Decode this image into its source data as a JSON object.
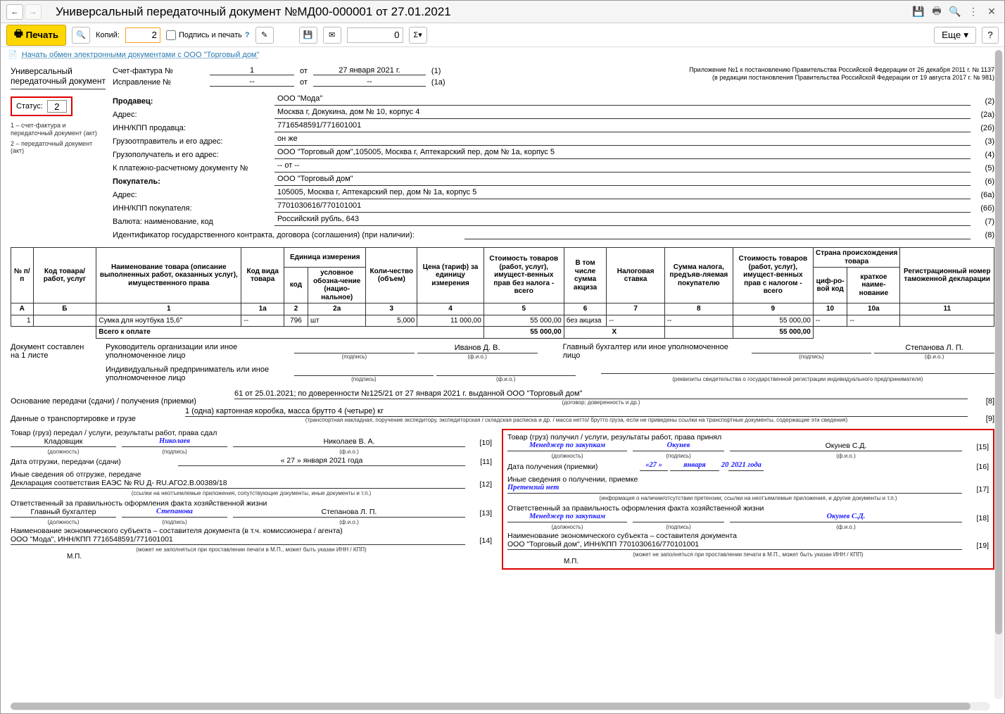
{
  "window": {
    "title": "Универсальный передаточный документ №МД00-000001 от 27.01.2021"
  },
  "toolbar": {
    "print": "Печать",
    "copies_label": "Копий:",
    "copies_value": "2",
    "sign_print": "Подпись и печать",
    "num_value": "0",
    "more": "Еще",
    "help": "?"
  },
  "link": "Начать обмен электронными документами с ООО \"Торговый дом\"",
  "left": {
    "doc_name": "Универсальный передаточный документ",
    "status_label": "Статус:",
    "status_value": "2",
    "note1": "1 – счет-фактура и передаточный документ (акт)",
    "note2": "2 – передаточный документ (акт)"
  },
  "attach": {
    "line1": "Приложение №1 к постановлению Правительства Российской Федерации от 26 декабря 2011 г. № 1137",
    "line2": "(в редакции постановления Правительства Российской Федерации от 19 августа 2017 г. № 981)"
  },
  "invoice": {
    "sf_label": "Счет-фактура №",
    "sf_num": "1",
    "sf_from": "от",
    "sf_date": "27 января 2021 г.",
    "sf_idx": "(1)",
    "corr_label": "Исправление №",
    "corr_num": "--",
    "corr_date": "--",
    "corr_idx": "(1а)"
  },
  "fields": [
    {
      "label": "Продавец:",
      "value": "ООО \"Мода\"",
      "num": "(2)",
      "bold": true
    },
    {
      "label": "Адрес:",
      "value": "Москва г, Докукина, дом № 10, корпус 4",
      "num": "(2а)"
    },
    {
      "label": "ИНН/КПП продавца:",
      "value": "7716548591/771601001",
      "num": "(2б)"
    },
    {
      "label": "Грузоотправитель и его адрес:",
      "value": "он же",
      "num": "(3)"
    },
    {
      "label": "Грузополучатель и его адрес:",
      "value": "ООО \"Торговый дом\",105005, Москва г, Аптекарский пер, дом № 1а, корпус 5",
      "num": "(4)"
    },
    {
      "label": "К платежно-расчетному документу №",
      "value": "-- от --",
      "num": "(5)"
    },
    {
      "label": "Покупатель:",
      "value": "ООО \"Торговый дом\"",
      "num": "(6)",
      "bold": true
    },
    {
      "label": "Адрес:",
      "value": "105005, Москва г, Аптекарский пер, дом № 1а, корпус 5",
      "num": "(6а)"
    },
    {
      "label": "ИНН/КПП покупателя:",
      "value": "7701030616/770101001",
      "num": "(6б)"
    },
    {
      "label": "Валюта: наименование, код",
      "value": "Российский рубль, 643",
      "num": "(7)"
    },
    {
      "label": "Идентификатор государственного контракта, договора (соглашения) (при наличии):",
      "value": "",
      "num": "(8)",
      "wide": true
    }
  ],
  "table": {
    "headers": {
      "h_pp": "№ п/п",
      "h_code": "Код товара/ работ, услуг",
      "h_name": "Наименование товара (описание выполненных работ, оказанных услуг), имущественного права",
      "h_type": "Код вида товара",
      "h_unit": "Единица измерения",
      "h_unit_code": "код",
      "h_unit_name": "условное обозна-чение (нацио-нальное)",
      "h_qty": "Коли-чество (объем)",
      "h_price": "Цена (тариф) за единицу измерения",
      "h_cost_notax": "Стоимость товаров (работ, услуг), имущест-венных прав без налога - всего",
      "h_excise": "В том числе сумма акциза",
      "h_taxrate": "Налоговая ставка",
      "h_taxsum": "Сумма налога, предъяв-ляемая покупателю",
      "h_cost_tax": "Стоимость товаров (работ, услуг), имущест-венных прав с налогом - всего",
      "h_country": "Страна происхождения товара",
      "h_country_code": "циф-ро-вой код",
      "h_country_name": "краткое наиме-нование",
      "h_decl": "Регистрационный номер таможенной декларации"
    },
    "colnums": [
      "А",
      "Б",
      "1",
      "1а",
      "2",
      "2а",
      "3",
      "4",
      "5",
      "6",
      "7",
      "8",
      "9",
      "10",
      "10а",
      "11"
    ],
    "rows": [
      {
        "pp": "1",
        "code": "",
        "name": "Сумка для ноутбука 15,6\"",
        "type": "--",
        "ucode": "796",
        "uname": "шт",
        "qty": "5,000",
        "price": "11 000,00",
        "cost_nt": "55 000,00",
        "excise": "без акциза",
        "rate": "--",
        "tax": "--",
        "cost_t": "55 000,00",
        "ccode": "--",
        "cname": "--",
        "decl": ""
      }
    ],
    "total_label": "Всего к оплате",
    "total_nt": "55 000,00",
    "total_x": "Х",
    "total_t": "55 000,00"
  },
  "doc_made": {
    "label": "Документ составлен на 1 листе"
  },
  "sig1": {
    "role1": "Руководитель организации или иное уполномоченное лицо",
    "name1": "Иванов Д. В.",
    "role2": "Главный бухгалтер или иное уполномоченное лицо",
    "name2": "Степанова Л. П.",
    "role3": "Индивидуальный предприниматель или иное уполномоченное лицо",
    "cap_sign": "(подпись)",
    "cap_fio": "(ф.и.о.)",
    "cap_rekv": "(реквизиты свидетельства о государственной регистрации индивидуального предпринимателя)"
  },
  "trans": {
    "base_label": "Основание передачи (сдачи) / получения (приемки)",
    "base_val": "61 от 25.01.2021; по доверенности №125/21 от 27 января 2021 г. выданной ООО \"Торговый дом\"",
    "base_cap": "(договор; доверенность и др.)",
    "base_num": "[8]",
    "data_label": "Данные о транспортировке и грузе",
    "data_val": "1 (одна) картонная коробка, масса брутто 4 (четыре) кг",
    "data_cap": "(транспортная накладная, поручение экспедитору, экспедиторская / складская расписка и др. / масса нетто/ брутто груза, если не приведены ссылки на транспортные документы, содержащие эти сведения)",
    "data_num": "[9]"
  },
  "left_half": {
    "h1": "Товар (груз) передал / услуги, результаты работ, права сдал",
    "pos": "Кладовщик",
    "sig": "Николаев",
    "fio": "Николаев В. А.",
    "n1": "[10]",
    "date_label": "Дата отгрузки, передачи (сдачи)",
    "date": "« 27 »   января   2021  года",
    "n2": "[11]",
    "other_label": "Иные сведения об отгрузке, передаче",
    "other_val": "Декларация соответствия ЕАЭС № RU Д- RU.АГО2.В.00389/18",
    "n3": "[12]",
    "other_cap": "(ссылки на неотъемлемые приложения, сопутствующие документы, иные документы и т.п.)",
    "resp_label": "Ответственный за правильность оформления факта хозяйственной жизни",
    "resp_pos": "Главный бухгалтер",
    "resp_sig": "Степанова",
    "resp_fio": "Степанова Л. П.",
    "n4": "[13]",
    "cap_pos": "(должность)",
    "cap_sig": "(подпись)",
    "cap_fio": "(ф.и.о.)",
    "econ_label": "Наименование экономического субъекта – составителя документа (в т.ч. комиссионера / агента)",
    "econ_val": "ООО \"Мода\", ИНН/КПП 7716548591/771601001",
    "n5": "[14]",
    "econ_cap": "(может не заполняться при проставлении печати в М.П., может быть указан ИНН / КПП)",
    "mp": "М.П."
  },
  "right_half": {
    "h1": "Товар (груз) получил / услуги, результаты работ, права принял",
    "pos": "Менеджер по закупкам",
    "sig": "Окунев",
    "fio": "Окунев С.Д.",
    "n1": "[15]",
    "date_label": "Дата получения (приемки)",
    "date_d": "«27 »",
    "date_m": "января",
    "date_y": "2021 года",
    "n2": "[16]",
    "other_label": "Иные сведения о получении, приемке",
    "other_val": "Претензий нет",
    "n3": "[17]",
    "other_cap": "(информация о наличии/отсутствии претензии; ссылки на неотъемлемые приложения, и другие документы и т.п.)",
    "resp_label": "Ответственный за правильность оформления факта хозяйственной жизни",
    "resp_pos": "Менеджер по закупкам",
    "resp_sig": "",
    "resp_fio": "Окунев С.Д.",
    "n4": "[18]",
    "cap_pos": "(должность)",
    "cap_sig": "(подпись)",
    "cap_fio": "(ф.и.о.)",
    "econ_label": "Наименование экономического субъекта – составителя документа",
    "econ_val": "ООО \"Торговый дом\", ИНН/КПП 7701030616/770101001",
    "n5": "[19]",
    "econ_cap": "(может не заполняться при проставлении печати в М.П., может быть указан ИНН / КПП)",
    "mp": "М.П."
  }
}
